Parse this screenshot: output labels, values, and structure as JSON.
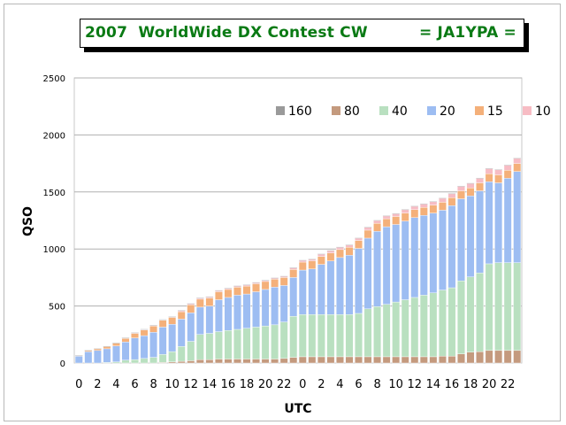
{
  "title": {
    "left": "2007  WorldWide DX Contest CW",
    "right": "= JA1YPA ="
  },
  "chart_data": {
    "type": "bar",
    "stacked": true,
    "xlabel": "UTC",
    "ylabel": "QSO",
    "ylim": [
      0,
      2500
    ],
    "yticks": [
      0,
      500,
      1000,
      1500,
      2000,
      2500
    ],
    "grid": true,
    "legend_position": "top-right",
    "x_tick_labels": [
      "0",
      "2",
      "4",
      "6",
      "8",
      "10",
      "12",
      "14",
      "16",
      "18",
      "20",
      "22",
      "0",
      "2",
      "4",
      "6",
      "8",
      "10",
      "12",
      "14",
      "16",
      "18",
      "20",
      "22"
    ],
    "x_tick_every": 2,
    "series": [
      {
        "name": "160",
        "color": "#9a9a9a",
        "values": [
          0,
          0,
          0,
          0,
          0,
          0,
          0,
          0,
          0,
          0,
          0,
          0,
          0,
          0,
          0,
          0,
          0,
          0,
          0,
          0,
          0,
          0,
          0,
          0,
          0,
          0,
          0,
          0,
          0,
          0,
          0,
          0,
          0,
          0,
          0,
          0,
          0,
          0,
          0,
          0,
          0,
          0,
          0,
          0,
          0,
          0,
          0,
          0
        ]
      },
      {
        "name": "80",
        "color": "#c49a7e",
        "values": [
          0,
          0,
          0,
          0,
          0,
          0,
          0,
          0,
          0,
          5,
          10,
          15,
          20,
          30,
          30,
          35,
          35,
          35,
          35,
          35,
          35,
          35,
          40,
          50,
          55,
          55,
          55,
          55,
          55,
          55,
          55,
          55,
          55,
          55,
          55,
          55,
          55,
          55,
          55,
          60,
          60,
          80,
          95,
          100,
          110,
          110,
          110,
          110
        ]
      },
      {
        "name": "40",
        "color": "#b9e0c0",
        "values": [
          0,
          0,
          0,
          5,
          10,
          25,
          30,
          40,
          50,
          70,
          90,
          130,
          170,
          220,
          230,
          240,
          250,
          260,
          270,
          280,
          290,
          300,
          320,
          360,
          370,
          370,
          370,
          370,
          370,
          370,
          380,
          420,
          440,
          460,
          480,
          500,
          520,
          540,
          560,
          580,
          600,
          640,
          660,
          690,
          760,
          770,
          770,
          770
        ]
      },
      {
        "name": "20",
        "color": "#9dbdf2",
        "values": [
          60,
          100,
          110,
          120,
          140,
          160,
          190,
          200,
          220,
          240,
          240,
          240,
          250,
          240,
          240,
          280,
          290,
          300,
          300,
          310,
          320,
          330,
          320,
          340,
          390,
          400,
          440,
          470,
          500,
          520,
          570,
          620,
          660,
          680,
          680,
          690,
          700,
          700,
          700,
          700,
          720,
          720,
          710,
          720,
          720,
          700,
          740,
          800
        ]
      },
      {
        "name": "15",
        "color": "#f4b07a",
        "values": [
          5,
          10,
          15,
          20,
          25,
          30,
          40,
          50,
          55,
          60,
          60,
          65,
          70,
          70,
          70,
          70,
          70,
          70,
          70,
          70,
          70,
          70,
          70,
          70,
          70,
          70,
          70,
          70,
          70,
          70,
          70,
          70,
          70,
          70,
          70,
          70,
          70,
          70,
          70,
          70,
          70,
          70,
          70,
          70,
          70,
          70,
          70,
          70
        ]
      },
      {
        "name": "10",
        "color": "#f7bcc4",
        "values": [
          0,
          0,
          0,
          0,
          0,
          5,
          5,
          5,
          5,
          5,
          5,
          10,
          10,
          10,
          10,
          10,
          10,
          10,
          10,
          10,
          10,
          10,
          10,
          15,
          15,
          15,
          20,
          20,
          20,
          20,
          20,
          25,
          25,
          25,
          25,
          30,
          30,
          30,
          30,
          35,
          35,
          40,
          40,
          40,
          45,
          45,
          45,
          45
        ]
      }
    ]
  }
}
